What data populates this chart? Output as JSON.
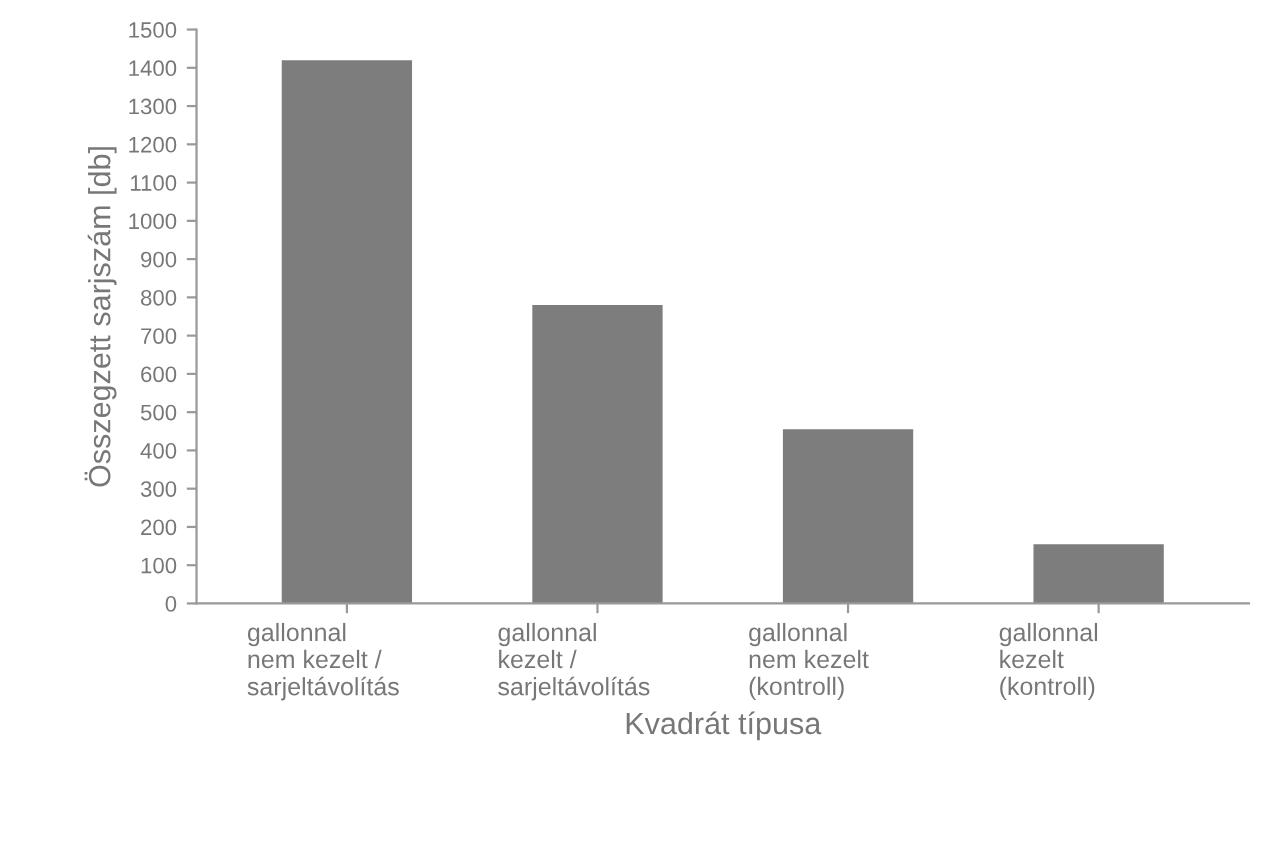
{
  "chart_data": {
    "type": "bar",
    "xlabel": "Kvadrát típusa",
    "ylabel": "Összegzett sarjszám [db]",
    "categories": [
      "gallonnal\nnem kezelt /\nsarjeltávolítás",
      "gallonnal\nkezelt /\nsarjeltávolítás",
      "gallonnal\nnem kezelt\n(kontroll)",
      "gallonnal\nkezelt\n(kontroll)"
    ],
    "values": [
      1420,
      780,
      455,
      155
    ],
    "color": "#7d7d7d",
    "ylim": [
      0,
      1500
    ],
    "yticks": [
      0,
      100,
      200,
      300,
      400,
      500,
      600,
      700,
      800,
      900,
      1000,
      1100,
      1200,
      1300,
      1400,
      1500
    ],
    "grid": false
  }
}
